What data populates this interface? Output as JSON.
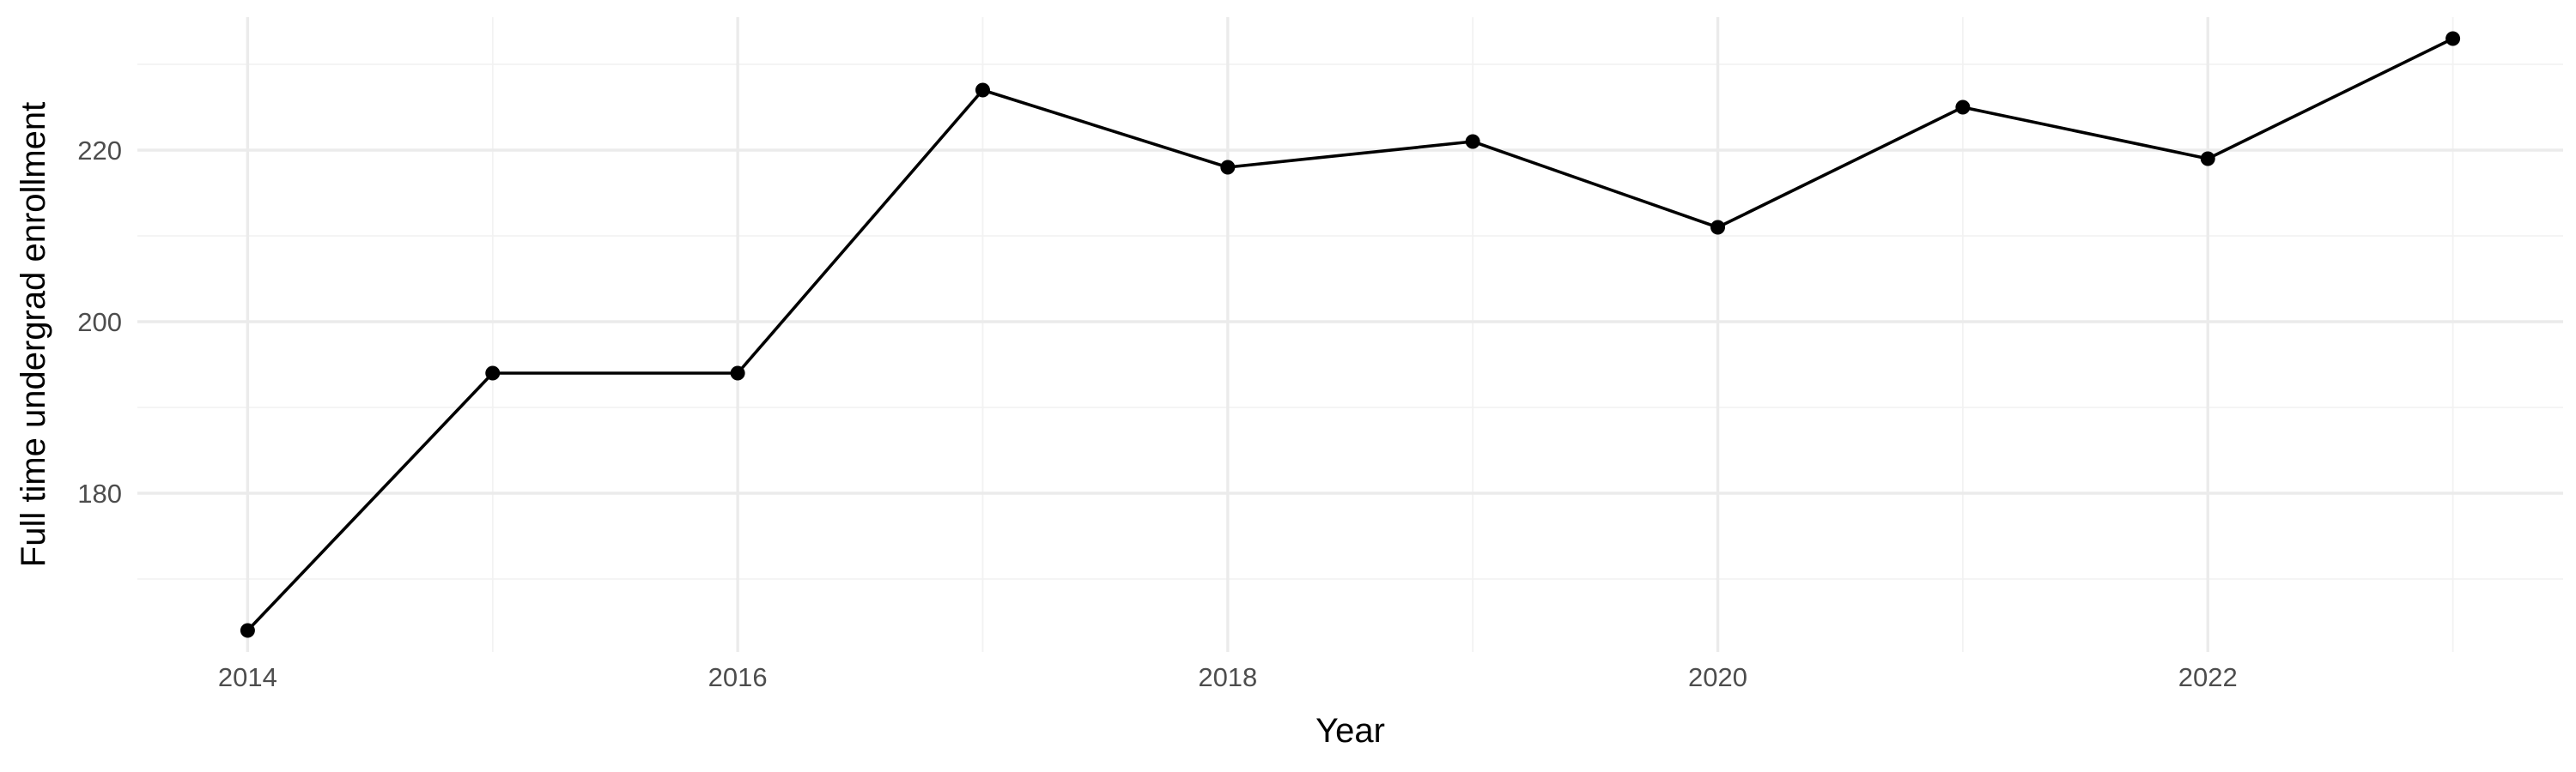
{
  "chart_data": {
    "type": "line",
    "title": "",
    "xlabel": "Year",
    "ylabel": "Full time undergrad enrollment",
    "x": [
      2014,
      2015,
      2016,
      2017,
      2018,
      2019,
      2020,
      2021,
      2022,
      2023
    ],
    "series": [
      {
        "values": [
          164,
          194,
          194,
          227,
          218,
          221,
          211,
          225,
          219,
          233
        ]
      }
    ],
    "xlim": [
      2013.55,
      2023.45
    ],
    "ylim": [
      161.5,
      235.5
    ],
    "x_ticks": [
      2014,
      2016,
      2018,
      2020,
      2022
    ],
    "x_tick_labels": [
      "2014",
      "2016",
      "2018",
      "2020",
      "2022"
    ],
    "x_minor_ticks": [
      2015,
      2017,
      2019,
      2021,
      2023
    ],
    "y_ticks": [
      180,
      200,
      220
    ],
    "y_tick_labels": [
      "180",
      "200",
      "220"
    ],
    "y_minor_ticks": [
      170,
      190,
      210,
      230
    ],
    "grid": true,
    "legend": "none",
    "colors": {
      "line": "#000000",
      "point": "#000000",
      "grid_major": "#ebebeb",
      "grid_minor": "#f2f2f2",
      "tick_text": "#4d4d4d",
      "axis_title": "#000000",
      "background": "#ffffff"
    }
  }
}
